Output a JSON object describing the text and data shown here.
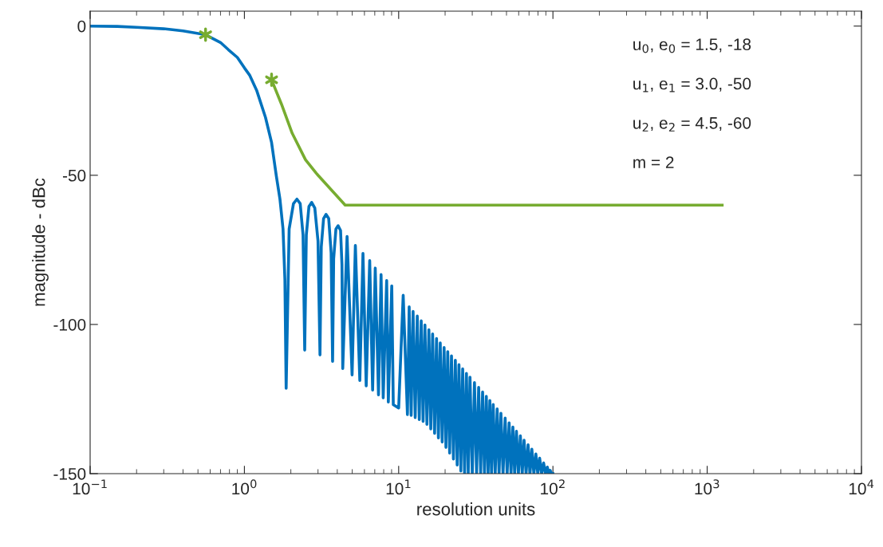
{
  "chart_data": {
    "type": "line",
    "xlabel": "resolution units",
    "ylabel": "magnitude - dBc",
    "log": "x",
    "grid": false,
    "legend": false,
    "xlim": [
      0.1,
      10000
    ],
    "ylim": [
      -150,
      5
    ],
    "xticks": [
      {
        "value": 0.1,
        "label": "10$^{−1}$"
      },
      {
        "value": 1,
        "label": "10$^{0}$"
      },
      {
        "value": 10,
        "label": "10$^{1}$"
      },
      {
        "value": 100,
        "label": "10$^{2}$"
      },
      {
        "value": 1000,
        "label": "10$^{3}$"
      },
      {
        "value": 10000,
        "label": "10$^{4}$"
      }
    ],
    "yticks": [
      -150,
      -100,
      -50,
      0
    ],
    "series": [
      {
        "color": "#0072bd",
        "line_style": "solid",
        "x": [
          0.1,
          0.15,
          0.2,
          0.3,
          0.342,
          0.4,
          0.56,
          0.7,
          0.787,
          0.9,
          1.0,
          1.08,
          1.2,
          1.37,
          1.5,
          1.61,
          1.7,
          1.78,
          1.83,
          1.865,
          1.95,
          2.08,
          2.19,
          2.3,
          2.4,
          2.46,
          2.52,
          2.62,
          2.73,
          2.86,
          3.0,
          3.09,
          3.15,
          3.26,
          3.38,
          3.52,
          3.65,
          3.73,
          3.79,
          3.92,
          4.05,
          4.2,
          4.29,
          4.34,
          4.63,
          4.99,
          5.24,
          5.6,
          5.87,
          6.16,
          6.49,
          6.78,
          7.05,
          7.4,
          7.69,
          7.94,
          8.36,
          8.57,
          9.02,
          9.23,
          10.0,
          10.7,
          11.4,
          11.7,
          12.05,
          12.4,
          12.8,
          13.2,
          13.6,
          14.0,
          14.4,
          14.8,
          15.25,
          15.7,
          16.15,
          16.6,
          17.1,
          17.6,
          18.1,
          18.6,
          19.15,
          19.7,
          20.25,
          20.8,
          21.4,
          22.0,
          22.65,
          23.3,
          23.95,
          24.6,
          25.3,
          26,
          26.75,
          27.5,
          28.25,
          29,
          30,
          31,
          32,
          33,
          34,
          35,
          36,
          37,
          38,
          39,
          40,
          41,
          42.25,
          43.5,
          44.75,
          46,
          47.5,
          49,
          50.5,
          52,
          53.5,
          55,
          56.5,
          58,
          59.75,
          61.5,
          63.25,
          65,
          67,
          69,
          71,
          73,
          75.25,
          77.5,
          79.75,
          82,
          84.5,
          87,
          89.5,
          92,
          94,
          96,
          98,
          100
        ],
        "values": [
          0,
          -0.1,
          -0.4,
          -0.9,
          -1.2,
          -1.6,
          -2.9,
          -5.5,
          -7.9,
          -10.5,
          -14,
          -16.4,
          -21.5,
          -30.6,
          -39,
          -50.2,
          -58,
          -68,
          -85,
          -121.4,
          -68,
          -59.5,
          -58.0,
          -59.5,
          -70,
          -108.6,
          -70,
          -60.5,
          -59.1,
          -61,
          -72,
          -110.2,
          -74,
          -64.5,
          -63.1,
          -64.5,
          -76,
          -112.4,
          -78,
          -68,
          -66.9,
          -68.5,
          -80,
          -114.8,
          -70.5,
          -116.9,
          -73.5,
          -118.8,
          -76.2,
          -120.6,
          -78.6,
          -122.0,
          -81.1,
          -123.6,
          -83.3,
          -124.6,
          -85.3,
          -126.0,
          -87.1,
          -126.9,
          -128.0,
          -90.2,
          -130.2,
          -94.1,
          -130.5,
          -95.6,
          -131.2,
          -97.2,
          -131.9,
          -98.8,
          -132.5,
          -100.2,
          -133.5,
          -101.8,
          -135.0,
          -103.2,
          -136.5,
          -104.7,
          -138.0,
          -106.2,
          -139.4,
          -107.7,
          -141.2,
          -109.1,
          -143.1,
          -110.5,
          -145.1,
          -112.0,
          -147.1,
          -113.5,
          -149.1,
          -114.9,
          -150,
          -116.4,
          -150,
          -117.7,
          -150,
          -119.5,
          -150,
          -121.1,
          -150,
          -122.6,
          -150,
          -124.1,
          -150,
          -125.5,
          -150,
          -126.8,
          -150,
          -128.3,
          -150,
          -129.8,
          -150,
          -131.4,
          -150,
          -133.0,
          -150,
          -134.4,
          -150,
          -135.8,
          -150,
          -137.3,
          -150,
          -138.8,
          -150,
          -140.3,
          -150,
          -141.8,
          -150,
          -143.4,
          -150,
          -144.8,
          -150,
          -146.4,
          -150,
          -147.8,
          -150,
          -148.9,
          -150,
          -150
        ]
      },
      {
        "color": "#77ac30",
        "line_style": "solid",
        "x": [
          1.5,
          1.74,
          2.04,
          2.49,
          2.92,
          3.0,
          4.5,
          1250
        ],
        "values": [
          -18,
          -26.2,
          -35.9,
          -44.8,
          -49.3,
          -50,
          -60,
          -60
        ]
      },
      {
        "type": "scatter",
        "color": "#77ac30",
        "marker": "cross",
        "x": [
          0.56,
          1.5
        ],
        "values": [
          -2.9,
          -18
        ]
      }
    ],
    "annotations": [
      "u$_{0}$, e$_{0}$ = 1.5, -18",
      "u$_{1}$, e$_{1}$ = 3.0, -50",
      "u$_{2}$, e$_{2}$ = 4.5, -60",
      "m = 2"
    ]
  }
}
